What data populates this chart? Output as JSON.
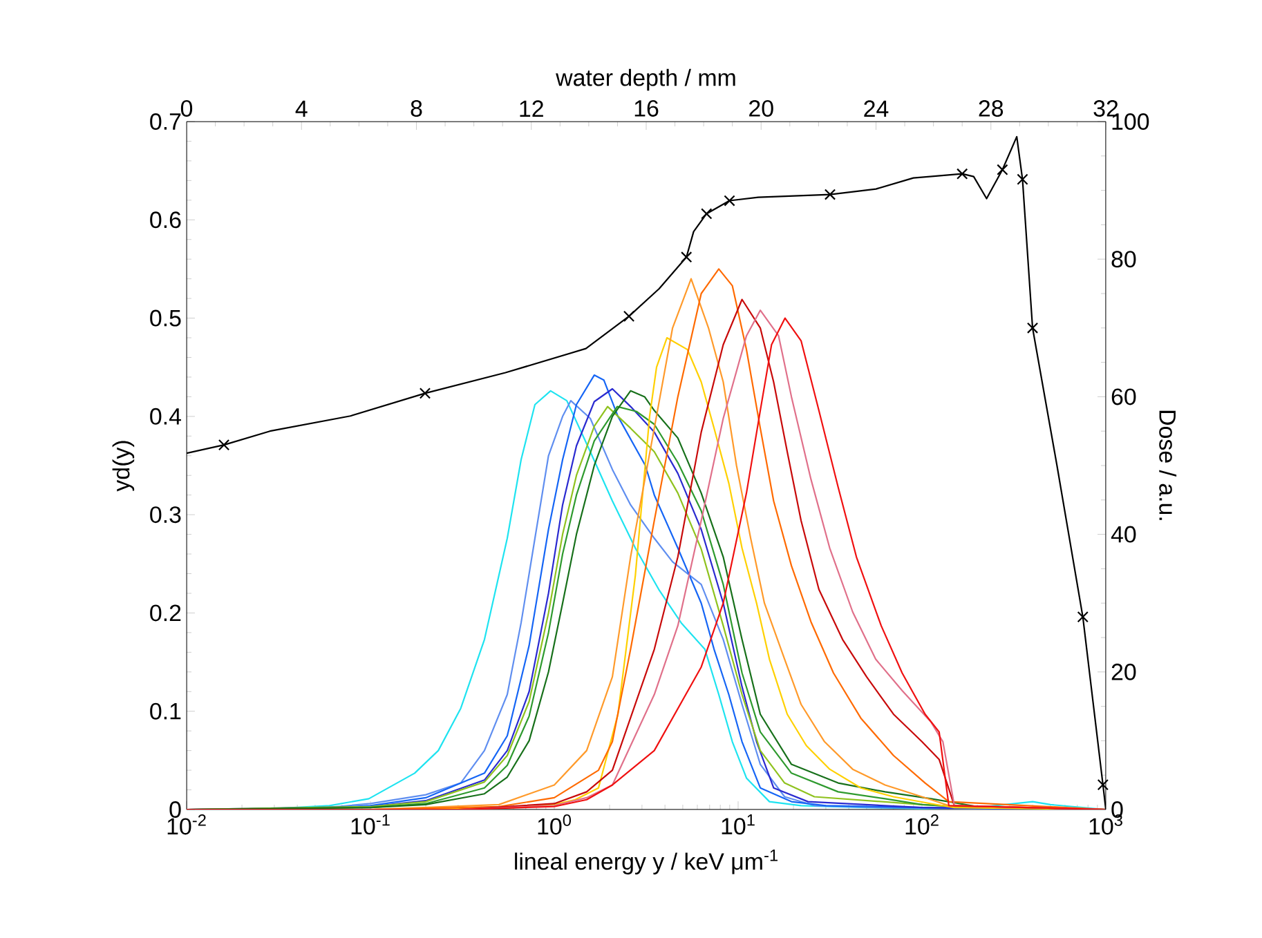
{
  "chart_data": [
    {
      "type": "line",
      "xlabel": "lineal energy y / keV μm$^{-1}$",
      "ylabel": "yd(y)",
      "log": "x",
      "marker": "none",
      "xlim": [
        0.01,
        1000
      ],
      "xticks": [
        {
          "value": 0.01,
          "label": "10$^{-2}$"
        },
        {
          "value": 0.1,
          "label": "10$^{-1}$"
        },
        {
          "value": 1,
          "label": "10$^{0}$"
        },
        {
          "value": 10,
          "label": "10$^{1}$"
        },
        {
          "value": 100,
          "label": "10$^{2}$"
        },
        {
          "value": 1000,
          "label": "10$^{3}$"
        }
      ],
      "ylim": [
        0,
        0.7
      ],
      "yticks": [
        0,
        0.1,
        0.2,
        0.3,
        0.4,
        0.5,
        0.6,
        0.7
      ],
      "series": [
        {
          "color": "#1ee3f0",
          "x": [
            0.01,
            0.03,
            0.06,
            0.098,
            0.174,
            0.234,
            0.31,
            0.417,
            0.555,
            0.66,
            0.785,
            0.955,
            1.17,
            1.57,
            2.07,
            2.76,
            3.7,
            4.9,
            6.6,
            7.85,
            9.3,
            11.1,
            14.8,
            22,
            50,
            100,
            200,
            400,
            500,
            1000
          ],
          "values": [
            0,
            0.001,
            0.004,
            0.011,
            0.037,
            0.06,
            0.103,
            0.173,
            0.276,
            0.356,
            0.412,
            0.426,
            0.416,
            0.364,
            0.314,
            0.266,
            0.224,
            0.19,
            0.163,
            0.117,
            0.069,
            0.032,
            0.008,
            0.004,
            0.002,
            0.001,
            0.002,
            0.008,
            0.005,
            0
          ]
        },
        {
          "color": "#5f8ef0",
          "x": [
            0.01,
            0.05,
            0.1,
            0.2,
            0.31,
            0.417,
            0.555,
            0.66,
            0.785,
            0.93,
            1.11,
            1.23,
            1.57,
            2.07,
            2.6,
            3.5,
            4.4,
            6.3,
            8.3,
            10.5,
            13.2,
            17.9,
            26,
            60,
            200,
            1000
          ],
          "values": [
            0,
            0.001,
            0.006,
            0.015,
            0.027,
            0.06,
            0.117,
            0.19,
            0.276,
            0.36,
            0.4,
            0.416,
            0.398,
            0.346,
            0.31,
            0.276,
            0.252,
            0.229,
            0.173,
            0.107,
            0.046,
            0.013,
            0.004,
            0.002,
            0.001,
            0
          ]
        },
        {
          "color": "#1565f5",
          "x": [
            0.01,
            0.05,
            0.1,
            0.2,
            0.417,
            0.555,
            0.73,
            0.93,
            1.11,
            1.32,
            1.65,
            1.86,
            2.22,
            3.13,
            3.5,
            4.7,
            6.3,
            7.4,
            8.9,
            10.5,
            13.2,
            19.5,
            30,
            100,
            1000
          ],
          "values": [
            0,
            0.001,
            0.004,
            0.012,
            0.037,
            0.075,
            0.167,
            0.285,
            0.356,
            0.412,
            0.442,
            0.437,
            0.4,
            0.35,
            0.32,
            0.266,
            0.21,
            0.163,
            0.117,
            0.069,
            0.022,
            0.008,
            0.004,
            0.002,
            0
          ]
        },
        {
          "color": "#2a2ad0",
          "x": [
            0.01,
            0.1,
            0.2,
            0.417,
            0.555,
            0.73,
            0.93,
            1.11,
            1.32,
            1.65,
            2.07,
            2.6,
            3.5,
            4.7,
            6.3,
            8.3,
            10.5,
            12.6,
            15.6,
            24,
            100,
            1000
          ],
          "values": [
            0,
            0.003,
            0.009,
            0.03,
            0.06,
            0.12,
            0.22,
            0.31,
            0.37,
            0.415,
            0.428,
            0.41,
            0.384,
            0.342,
            0.285,
            0.21,
            0.125,
            0.069,
            0.022,
            0.008,
            0.002,
            0
          ]
        },
        {
          "color": "#8fc21e",
          "x": [
            0.01,
            0.1,
            0.2,
            0.417,
            0.555,
            0.73,
            0.93,
            1.11,
            1.32,
            1.65,
            1.95,
            2.6,
            3.5,
            4.7,
            6.3,
            8.3,
            10.5,
            13.2,
            17.9,
            26,
            100,
            150,
            1000
          ],
          "values": [
            0,
            0.003,
            0.008,
            0.028,
            0.055,
            0.11,
            0.2,
            0.28,
            0.34,
            0.39,
            0.41,
            0.388,
            0.364,
            0.322,
            0.265,
            0.187,
            0.117,
            0.06,
            0.027,
            0.013,
            0.005,
            0.003,
            0
          ]
        },
        {
          "color": "#2e9a2e",
          "x": [
            0.01,
            0.1,
            0.2,
            0.417,
            0.555,
            0.73,
            0.93,
            1.11,
            1.32,
            1.65,
            2.2,
            2.8,
            3.5,
            4.7,
            6.3,
            8.3,
            10.5,
            13.2,
            19.5,
            35,
            63,
            100,
            200,
            1000
          ],
          "values": [
            0,
            0.002,
            0.006,
            0.022,
            0.045,
            0.095,
            0.18,
            0.26,
            0.32,
            0.375,
            0.41,
            0.405,
            0.392,
            0.353,
            0.304,
            0.229,
            0.139,
            0.079,
            0.037,
            0.018,
            0.011,
            0.005,
            0.002,
            0
          ]
        },
        {
          "color": "#17701a",
          "x": [
            0.01,
            0.1,
            0.2,
            0.417,
            0.555,
            0.73,
            0.93,
            1.11,
            1.32,
            1.65,
            2.07,
            2.6,
            3.1,
            3.5,
            4.7,
            6.3,
            8.3,
            10.5,
            13.2,
            19.5,
            35,
            63,
            112,
            200,
            1000
          ],
          "values": [
            0,
            0.002,
            0.005,
            0.016,
            0.033,
            0.07,
            0.14,
            0.21,
            0.28,
            0.35,
            0.4,
            0.426,
            0.42,
            0.406,
            0.378,
            0.322,
            0.257,
            0.173,
            0.097,
            0.046,
            0.027,
            0.018,
            0.011,
            0.003,
            0
          ]
        },
        {
          "color": "#ffd000",
          "x": [
            0.01,
            0.1,
            0.3,
            0.6,
            1.0,
            1.3,
            1.74,
            2.22,
            2.76,
            3.3,
            3.6,
            4.1,
            5.3,
            6.3,
            7.4,
            8.9,
            10.5,
            12.6,
            14.8,
            18.5,
            23.5,
            31.5,
            46.5,
            70,
            112,
            150,
            1000
          ],
          "values": [
            0,
            0,
            0.001,
            0.002,
            0.005,
            0.01,
            0.022,
            0.097,
            0.238,
            0.4,
            0.45,
            0.48,
            0.468,
            0.435,
            0.388,
            0.332,
            0.266,
            0.21,
            0.153,
            0.097,
            0.065,
            0.041,
            0.022,
            0.013,
            0.006,
            0.002,
            0
          ]
        },
        {
          "color": "#ff9a2a",
          "x": [
            0.01,
            0.1,
            0.5,
            1.0,
            1.5,
            2.07,
            2.6,
            3.5,
            4.4,
            5.55,
            6.9,
            8.3,
            9.8,
            11.7,
            13.9,
            17.9,
            22,
            29.5,
            42,
            63,
            100,
            140,
            1000
          ],
          "values": [
            0,
            0,
            0.005,
            0.025,
            0.06,
            0.135,
            0.257,
            0.388,
            0.49,
            0.54,
            0.49,
            0.435,
            0.35,
            0.276,
            0.21,
            0.153,
            0.107,
            0.069,
            0.041,
            0.025,
            0.013,
            0.004,
            0
          ]
        },
        {
          "color": "#ff6a00",
          "x": [
            0.01,
            0.1,
            0.5,
            1.0,
            1.74,
            2.07,
            2.6,
            3.5,
            4.7,
            6.3,
            7.85,
            9.3,
            11.1,
            13.2,
            15.6,
            19.5,
            24.9,
            33,
            46.5,
            70,
            104,
            140,
            1000
          ],
          "values": [
            0,
            0,
            0.003,
            0.012,
            0.04,
            0.069,
            0.163,
            0.294,
            0.42,
            0.525,
            0.55,
            0.533,
            0.468,
            0.388,
            0.314,
            0.248,
            0.191,
            0.139,
            0.093,
            0.055,
            0.027,
            0.008,
            0
          ]
        },
        {
          "color": "#c80a0a",
          "x": [
            0.01,
            0.3,
            1.0,
            1.5,
            2.07,
            3.5,
            4.7,
            6.3,
            8.3,
            10.5,
            13.2,
            15.6,
            18.5,
            22,
            27.5,
            37,
            50,
            70,
            100,
            124,
            150,
            1000
          ],
          "values": [
            0,
            0,
            0.006,
            0.018,
            0.04,
            0.163,
            0.257,
            0.384,
            0.473,
            0.519,
            0.49,
            0.435,
            0.364,
            0.294,
            0.224,
            0.173,
            0.135,
            0.097,
            0.069,
            0.051,
            0.004,
            0
          ]
        },
        {
          "color": "#e0708a",
          "x": [
            0.01,
            0.3,
            1.0,
            1.5,
            2.07,
            3.5,
            4.7,
            6.3,
            8.3,
            11.1,
            13.2,
            16.6,
            19.5,
            24.9,
            31.5,
            42,
            56,
            78,
            112,
            130,
            150,
            1000
          ],
          "values": [
            0,
            0,
            0.004,
            0.012,
            0.025,
            0.117,
            0.187,
            0.294,
            0.398,
            0.482,
            0.508,
            0.482,
            0.42,
            0.336,
            0.266,
            0.201,
            0.153,
            0.121,
            0.089,
            0.069,
            0.004,
            0
          ]
        },
        {
          "color": "#f01010",
          "x": [
            0.01,
            0.3,
            1.0,
            1.5,
            2.07,
            3.5,
            6.3,
            8.3,
            11.1,
            13.2,
            15.2,
            18,
            22,
            27.5,
            35,
            44,
            60,
            78,
            104,
            124,
            140,
            1000
          ],
          "values": [
            0,
            0,
            0.003,
            0.01,
            0.025,
            0.06,
            0.145,
            0.21,
            0.322,
            0.406,
            0.473,
            0.5,
            0.477,
            0.406,
            0.328,
            0.257,
            0.187,
            0.139,
            0.097,
            0.079,
            0.004,
            0
          ]
        }
      ]
    },
    {
      "type": "line",
      "xlabel": "water depth / mm",
      "ylabel": "Dose / a.u.",
      "marker": "none",
      "xlim": [
        0,
        32
      ],
      "xticks": [
        0,
        4,
        8,
        12,
        16,
        20,
        24,
        28,
        32
      ],
      "ylim": [
        0,
        100
      ],
      "yticks": [
        0,
        20,
        40,
        60,
        80,
        100
      ],
      "series": [
        {
          "color": "#000000",
          "x": [
            0,
            1.3,
            2.9,
            5.7,
            8.3,
            11.1,
            13.9,
            15.4,
            16.45,
            17.4,
            17.65,
            18.1,
            18.9,
            19.9,
            22.4,
            24,
            25.3,
            27.0,
            27.4,
            27.85,
            28.4,
            28.9,
            29.1,
            29.45,
            30.3,
            31.2,
            31.9,
            32
          ],
          "values": [
            51.8,
            53,
            55,
            57.2,
            60.5,
            63.5,
            67,
            71.7,
            75.7,
            80.3,
            84,
            86.6,
            88.5,
            89,
            89.4,
            90.2,
            91.8,
            92.4,
            92,
            88.8,
            93,
            97.8,
            91.6,
            70,
            50,
            28,
            3.6,
            0
          ]
        },
        {
          "type": "scatter",
          "marker": "cross",
          "color": "#000000",
          "x": [
            1.3,
            8.3,
            15.4,
            17.4,
            18.1,
            18.9,
            22.4,
            27.0,
            28.4,
            29.1,
            29.45,
            31.2,
            31.9
          ],
          "values": [
            53,
            60.5,
            71.7,
            80.3,
            86.6,
            88.5,
            89.4,
            92.4,
            93,
            91.6,
            70,
            28,
            3.6
          ]
        }
      ]
    }
  ]
}
